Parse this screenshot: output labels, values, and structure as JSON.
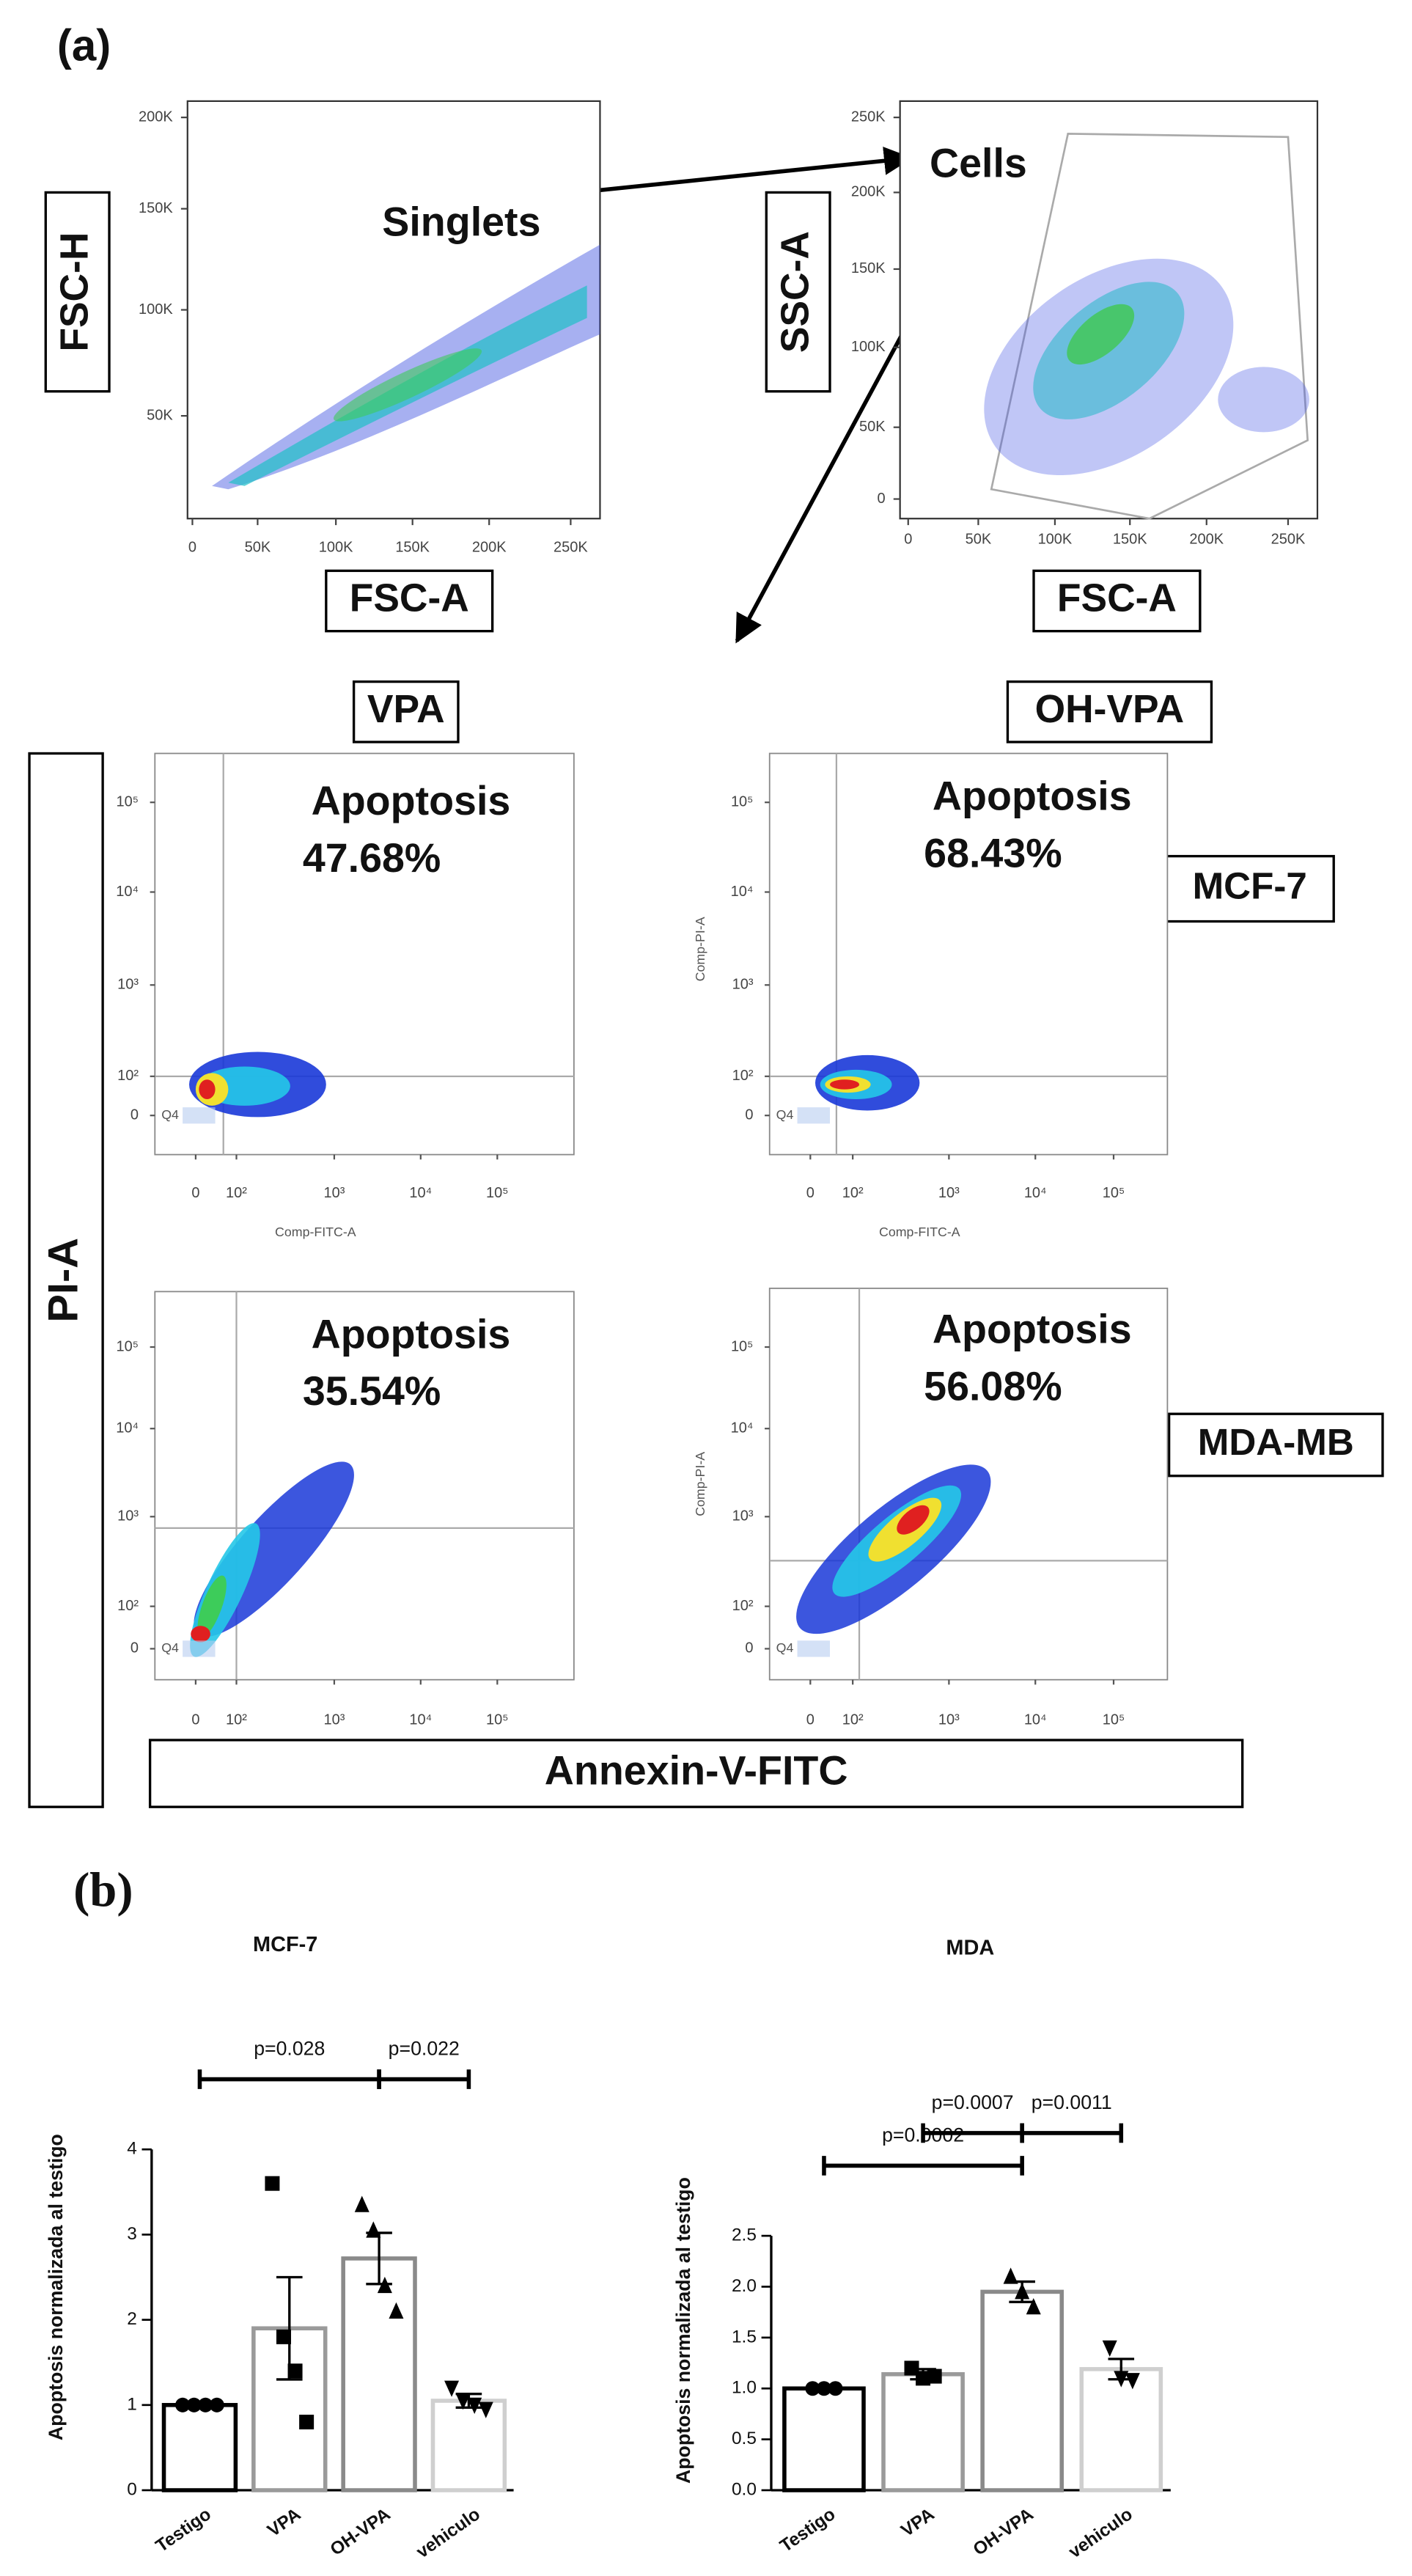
{
  "panel_a": {
    "label": "(a)",
    "gating": [
      {
        "x_label": "FSC-A",
        "y_label": "FSC-H",
        "gate": "Singlets",
        "xticks": [
          "0",
          "50K",
          "100K",
          "150K",
          "200K",
          "250K"
        ],
        "yticks": [
          "50K",
          "100K",
          "150K",
          "200K"
        ]
      },
      {
        "x_label": "FSC-A",
        "y_label": "SSC-A",
        "gate": "Cells",
        "xticks": [
          "0",
          "50K",
          "100K",
          "150K",
          "200K",
          "250K"
        ],
        "yticks": [
          "0",
          "50K",
          "100K",
          "150K",
          "200K",
          "250K"
        ]
      }
    ],
    "columns": [
      "VPA",
      "OH-VPA"
    ],
    "rows": [
      "MCF-7",
      "MDA-MB"
    ],
    "y_axis": "PI-A",
    "x_axis": "Annexin-V-FITC",
    "flow_xticks": [
      "0",
      "10²",
      "10³",
      "10⁴",
      "10⁵"
    ],
    "flow_yticks": [
      "0",
      "10²",
      "10³",
      "10⁴",
      "10⁵"
    ],
    "flow_plots": [
      {
        "label": "Apoptosis",
        "value": "47.68%",
        "quadrant": "Q4",
        "x_label": "Comp-FITC-A"
      },
      {
        "label": "Apoptosis",
        "value": "68.43%",
        "quadrant": "Q4",
        "x_label": "Comp-FITC-A",
        "y_label": "Comp-PI-A"
      },
      {
        "label": "Apoptosis",
        "value": "35.54%",
        "quadrant": "Q4"
      },
      {
        "label": "Apoptosis",
        "value": "56.08%",
        "quadrant": "Q4",
        "y_label": "Comp-PI-A"
      }
    ]
  },
  "panel_b": {
    "label": "(b)"
  },
  "chart_data": [
    {
      "type": "bar",
      "title": "MCF-7",
      "y_label": "Apoptosis normalizada al testigo",
      "categories": [
        "Testigo",
        "VPA",
        "OH-VPA",
        "vehiculo"
      ],
      "values": [
        1.0,
        1.9,
        2.72,
        1.05
      ],
      "errors": [
        0,
        0.6,
        0.3,
        0.08
      ],
      "points": [
        [
          1,
          1,
          1,
          1
        ],
        [
          3.6,
          1.8,
          1.4,
          0.8
        ],
        [
          3.35,
          3.05,
          2.4,
          2.1
        ],
        [
          1.2,
          1.05,
          1.0,
          0.95
        ]
      ],
      "colors": [
        "#000000",
        "#9a9a9a",
        "#8a8a8a",
        "#cfcfcf"
      ],
      "markers": [
        "circle",
        "square",
        "triangle",
        "triangle-down"
      ],
      "ylim": [
        0,
        4
      ],
      "yticks": [
        0,
        1,
        2,
        3,
        4
      ],
      "annotations": [
        {
          "text": "p=0.028",
          "from": "Testigo",
          "to": "OH-VPA"
        },
        {
          "text": "p=0.022",
          "from": "OH-VPA",
          "to": "vehiculo"
        }
      ]
    },
    {
      "type": "bar",
      "title": "MDA",
      "y_label": "Apoptosis normalizada al testigo",
      "categories": [
        "Testigo",
        "VPA",
        "OH-VPA",
        "vehiculo"
      ],
      "values": [
        1.0,
        1.14,
        1.95,
        1.19
      ],
      "errors": [
        0,
        0.05,
        0.1,
        0.1
      ],
      "points": [
        [
          1,
          1,
          1
        ],
        [
          1.2,
          1.1,
          1.12
        ],
        [
          2.1,
          1.95,
          1.8
        ],
        [
          1.4,
          1.1,
          1.08
        ]
      ],
      "colors": [
        "#000000",
        "#9a9a9a",
        "#8a8a8a",
        "#cfcfcf"
      ],
      "markers": [
        "circle",
        "square",
        "triangle",
        "triangle-down"
      ],
      "ylim": [
        0,
        2.5
      ],
      "yticks": [
        {
          "value": 0,
          "label": "0.0"
        },
        {
          "value": 0.5,
          "label": "0.5"
        },
        {
          "value": 1,
          "label": "1.0"
        },
        {
          "value": 1.5,
          "label": "1.5"
        },
        {
          "value": 2,
          "label": "2.0"
        },
        {
          "value": 2.5,
          "label": "2.5"
        }
      ],
      "annotations": [
        {
          "text": "p=0.0002",
          "from": "Testigo",
          "to": "OH-VPA"
        },
        {
          "text": "p=0.0007",
          "from": "VPA",
          "to": "OH-VPA"
        },
        {
          "text": "p=0.0011",
          "from": "OH-VPA",
          "to": "vehiculo"
        }
      ]
    }
  ]
}
